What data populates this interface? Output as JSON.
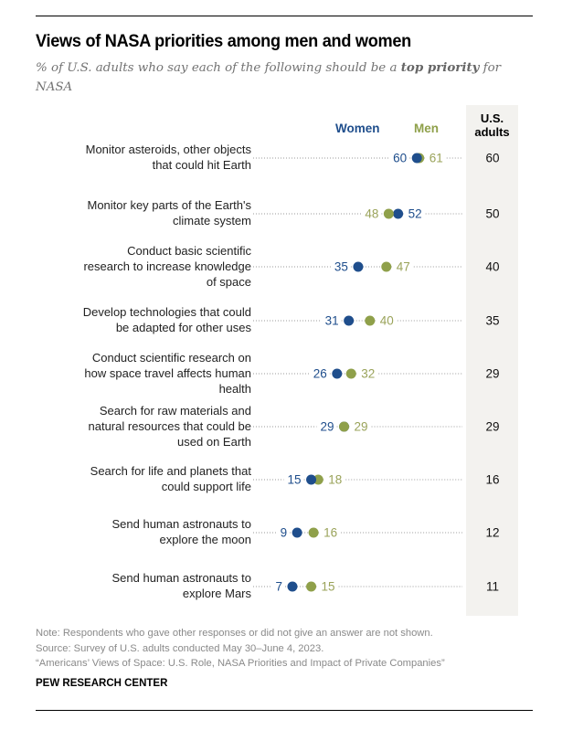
{
  "header": {
    "title": "Views of NASA priorities among men and women",
    "subtitle_pre": "% of U.S. adults who say each of the following should be a ",
    "subtitle_bold": "top priority",
    "subtitle_post": " for NASA"
  },
  "legend": {
    "women": "Women",
    "men": "Men",
    "us_adults_line1": "U.S.",
    "us_adults_line2": "adults"
  },
  "colors": {
    "women": "#1f4e8c",
    "men": "#8fa04a",
    "men_text": "#9aa35a",
    "us_column_bg": "#f3f2ef"
  },
  "chart_data": {
    "type": "dot",
    "title": "Views of NASA priorities among men and women",
    "subtitle": "% of U.S. adults who say each of the following should be a top priority for NASA",
    "xlim": [
      0,
      100
    ],
    "categories": [
      "Monitor asteroids, other objects that could hit Earth",
      "Monitor key parts of the Earth's climate system",
      "Conduct basic scientific research to increase knowledge of space",
      "Develop technologies that could be adapted for other uses",
      "Conduct scientific research on how space travel affects human health",
      "Search for raw materials and natural resources that could be used on Earth",
      "Search for life and planets that could support life",
      "Send human astronauts to explore the moon",
      "Send human astronauts to explore Mars"
    ],
    "label_lines": [
      [
        "Monitor asteroids, other objects",
        "that could hit Earth"
      ],
      [
        "Monitor key parts of the Earth's",
        "climate system"
      ],
      [
        "Conduct basic scientific",
        "research to increase knowledge",
        "of space"
      ],
      [
        "Develop technologies that could",
        "be adapted for other uses"
      ],
      [
        "Conduct scientific research on",
        "how space travel affects human",
        "health"
      ],
      [
        "Search for raw materials and",
        "natural resources that could be",
        "used on Earth"
      ],
      [
        "Search for life and planets that",
        "could support life"
      ],
      [
        "Send human astronauts to",
        "explore the moon"
      ],
      [
        "Send human astronauts to",
        "explore Mars"
      ]
    ],
    "series": [
      {
        "name": "Women",
        "values": [
          60,
          52,
          35,
          31,
          26,
          29,
          15,
          9,
          7
        ]
      },
      {
        "name": "Men",
        "values": [
          61,
          48,
          47,
          40,
          32,
          29,
          18,
          16,
          15
        ]
      },
      {
        "name": "U.S. adults",
        "values": [
          60,
          50,
          40,
          35,
          29,
          29,
          16,
          12,
          11
        ]
      }
    ]
  },
  "footer": {
    "note": "Note: Respondents who gave other responses or did not give an answer are not shown.",
    "source": "Source: Survey of U.S. adults conducted May 30–June 4, 2023.",
    "report": "“Americans’ Views of Space: U.S. Role, NASA Priorities and Impact of Private Companies”",
    "brand": "PEW RESEARCH CENTER"
  }
}
